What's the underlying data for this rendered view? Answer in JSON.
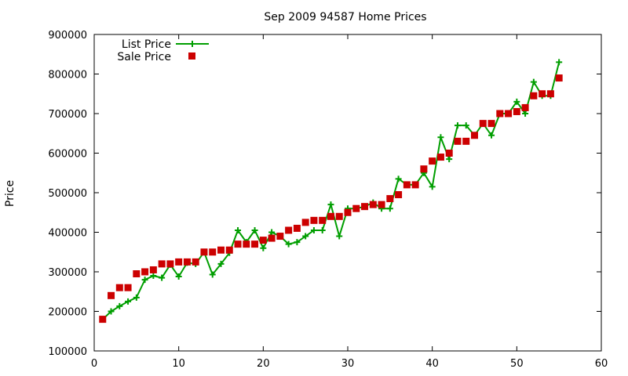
{
  "chart_data": {
    "type": "scatter",
    "title": "Sep 2009 94587 Home Prices",
    "xlabel": "",
    "ylabel": "Price",
    "xlim": [
      0,
      60
    ],
    "ylim": [
      100000,
      900000
    ],
    "xticks": [
      0,
      10,
      20,
      30,
      40,
      50,
      60
    ],
    "yticks": [
      100000,
      200000,
      300000,
      400000,
      500000,
      600000,
      700000,
      800000,
      900000
    ],
    "legend_position": "top-left",
    "grid": false,
    "series": [
      {
        "name": "List Price",
        "style": "linespoints",
        "color": "#009e00",
        "marker": "plus",
        "x": [
          1,
          2,
          3,
          4,
          5,
          6,
          7,
          8,
          9,
          10,
          11,
          12,
          13,
          14,
          15,
          16,
          17,
          18,
          19,
          20,
          21,
          22,
          23,
          24,
          25,
          26,
          27,
          28,
          29,
          30,
          31,
          32,
          33,
          34,
          35,
          36,
          37,
          38,
          39,
          40,
          41,
          42,
          43,
          44,
          45,
          46,
          47,
          48,
          49,
          50,
          51,
          52,
          53,
          54,
          55
        ],
        "y": [
          180000,
          200000,
          213000,
          225000,
          235000,
          280000,
          290000,
          285000,
          318000,
          288000,
          323000,
          320000,
          350000,
          293000,
          320000,
          348000,
          405000,
          375000,
          405000,
          360000,
          400000,
          390000,
          370000,
          375000,
          390000,
          405000,
          405000,
          470000,
          390000,
          460000,
          460000,
          465000,
          475000,
          460000,
          460000,
          535000,
          520000,
          520000,
          550000,
          515000,
          640000,
          585000,
          670000,
          670000,
          645000,
          675000,
          645000,
          700000,
          700000,
          730000,
          700000,
          780000,
          745000,
          745000,
          830000
        ]
      },
      {
        "name": "Sale Price",
        "style": "points",
        "color": "#cc0000",
        "marker": "square",
        "x": [
          1,
          2,
          3,
          4,
          5,
          6,
          7,
          8,
          9,
          10,
          11,
          12,
          13,
          14,
          15,
          16,
          17,
          18,
          19,
          20,
          21,
          22,
          23,
          24,
          25,
          26,
          27,
          28,
          29,
          30,
          31,
          32,
          33,
          34,
          35,
          36,
          37,
          38,
          39,
          40,
          41,
          42,
          43,
          44,
          45,
          46,
          47,
          48,
          49,
          50,
          51,
          52,
          53,
          54,
          55
        ],
        "y": [
          180000,
          240000,
          260000,
          260000,
          295000,
          300000,
          305000,
          320000,
          320000,
          325000,
          325000,
          325000,
          350000,
          350000,
          355000,
          355000,
          370000,
          370000,
          370000,
          380000,
          385000,
          390000,
          405000,
          410000,
          425000,
          430000,
          430000,
          440000,
          440000,
          450000,
          460000,
          465000,
          470000,
          470000,
          485000,
          495000,
          520000,
          520000,
          560000,
          580000,
          590000,
          600000,
          630000,
          630000,
          645000,
          675000,
          675000,
          700000,
          700000,
          705000,
          715000,
          745000,
          750000,
          750000,
          790000
        ]
      }
    ]
  }
}
